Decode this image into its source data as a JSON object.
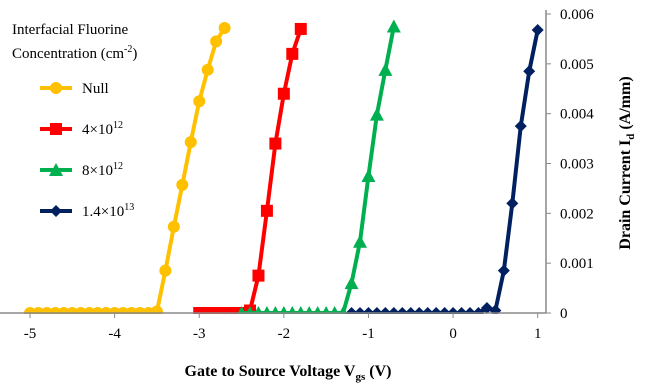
{
  "chart_data": {
    "type": "line",
    "xlabel_main": "Gate to Source Voltage V",
    "xlabel_sub": "gs",
    "xlabel_unit": " (V)",
    "ylabel_main": "Drain Current I",
    "ylabel_sub": "d",
    "ylabel_unit": " (A/mm)",
    "xlim": [
      -5,
      1.5
    ],
    "ylim": [
      0,
      0.006
    ],
    "x_ticks": [
      -5,
      -4,
      -3,
      -2,
      -1,
      0,
      1
    ],
    "x_tick_labels": [
      "-5",
      "-4",
      "-3",
      "-2",
      "-1",
      "0",
      "1"
    ],
    "y_ticks": [
      0,
      0.001,
      0.002,
      0.003,
      0.004,
      0.005,
      0.006
    ],
    "y_tick_labels": [
      "0",
      "0.001",
      "0.002",
      "0.003",
      "0.004",
      "0.005",
      "0.006"
    ],
    "legend": {
      "title_line1": "Interfacial Fluorine",
      "title_line2": "Concentration (cm",
      "title_sup": "-2",
      "title_end": ")",
      "placement": "top-left"
    },
    "series": [
      {
        "name": "Null",
        "name_base": "Null",
        "name_sup": "",
        "color": "#FFC000",
        "marker": "circle",
        "x": [
          -5.0,
          -4.9,
          -4.8,
          -4.7,
          -4.6,
          -4.5,
          -4.4,
          -4.3,
          -4.2,
          -4.1,
          -4.0,
          -3.9,
          -3.8,
          -3.7,
          -3.6,
          -3.5,
          -3.4,
          -3.3,
          -3.2,
          -3.1,
          -3.0,
          -2.9,
          -2.8,
          -2.7
        ],
        "y": [
          0,
          0,
          0,
          0,
          0,
          0,
          0,
          0,
          0,
          0,
          0,
          0,
          0,
          0,
          0,
          3e-05,
          0.00085,
          0.00173,
          0.00257,
          0.00343,
          0.00425,
          0.00488,
          0.00545,
          0.00572
        ]
      },
      {
        "name": "4×10^12",
        "name_base": "4×10",
        "name_sup": "12",
        "color": "#FF0000",
        "marker": "square",
        "x": [
          -3.0,
          -2.9,
          -2.8,
          -2.7,
          -2.6,
          -2.5,
          -2.4,
          -2.3,
          -2.2,
          -2.1,
          -2.0,
          -1.9,
          -1.8
        ],
        "y": [
          0,
          0,
          0,
          0,
          0,
          0,
          5e-05,
          0.00075,
          0.00205,
          0.0034,
          0.0044,
          0.0052,
          0.0057
        ]
      },
      {
        "name": "8×10^12",
        "name_base": "8×10",
        "name_sup": "12",
        "color": "#00B050",
        "marker": "triangle",
        "x": [
          -2.5,
          -2.4,
          -2.3,
          -2.2,
          -2.1,
          -2.0,
          -1.9,
          -1.8,
          -1.7,
          -1.6,
          -1.5,
          -1.4,
          -1.3,
          -1.2,
          -1.1,
          -1.0,
          -0.9,
          -0.8,
          -0.7
        ],
        "y": [
          0,
          0,
          0,
          0,
          0,
          0,
          0,
          0,
          0,
          0,
          0,
          0,
          0,
          0.0006,
          0.00143,
          0.00275,
          0.00398,
          0.00488,
          0.00575
        ]
      },
      {
        "name": "1.4×10^13",
        "name_base": "1.4×10",
        "name_sup": "13",
        "color": "#002060",
        "marker": "diamond",
        "x": [
          -1.2,
          -1.1,
          -1.0,
          -0.9,
          -0.8,
          -0.7,
          -0.6,
          -0.5,
          -0.4,
          -0.3,
          -0.2,
          -0.1,
          0.0,
          0.1,
          0.2,
          0.3,
          0.4,
          0.5,
          0.6,
          0.7,
          0.8,
          0.9,
          1.0
        ],
        "y": [
          0,
          0,
          0,
          0,
          0,
          0,
          0,
          0,
          0,
          0,
          0,
          0,
          0,
          0,
          0,
          0,
          0.0001,
          5e-05,
          0.00085,
          0.0022,
          0.00375,
          0.00485,
          0.00568
        ]
      }
    ]
  }
}
